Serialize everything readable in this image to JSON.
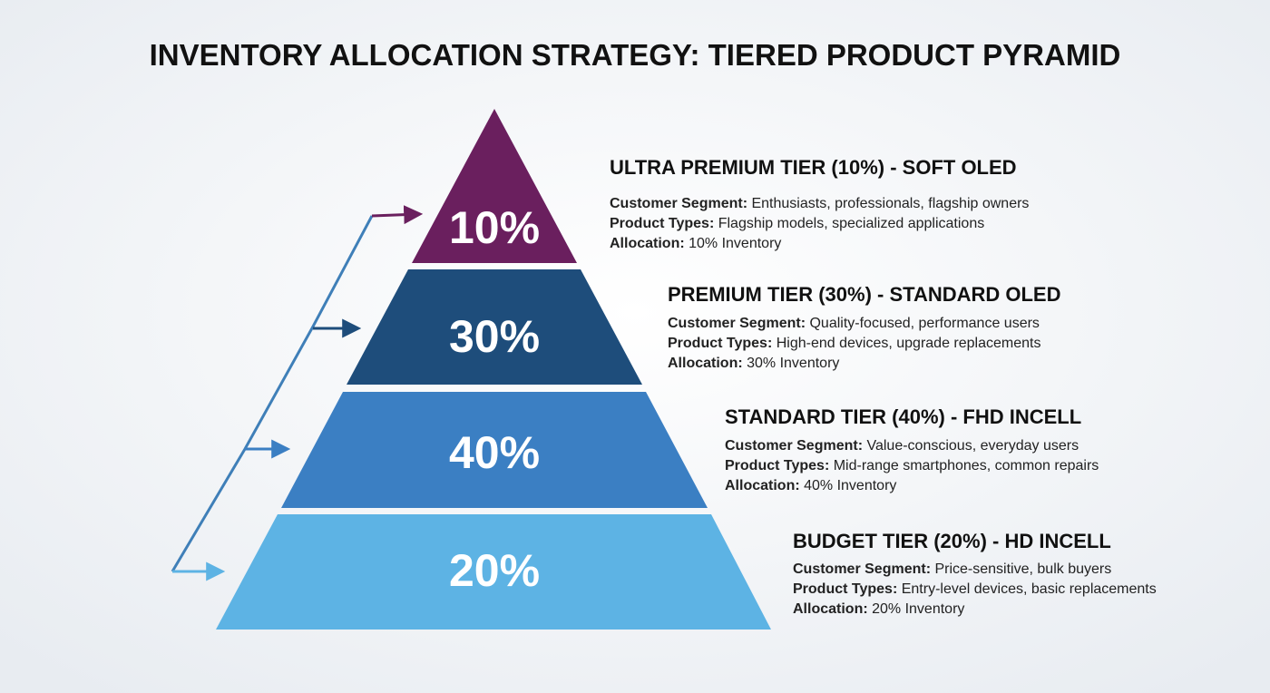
{
  "title": "INVENTORY ALLOCATION STRATEGY: TIERED PRODUCT PYRAMID",
  "tiers": [
    {
      "percent": "10%",
      "heading": "ULTRA PREMIUM TIER (10%) - SOFT OLED",
      "segment_label": "Customer Segment:",
      "segment": "Enthusiasts, professionals, flagship owners",
      "types_label": "Product Types:",
      "types": "Flagship models, specialized applications",
      "allocation_label": "Allocation:",
      "allocation": "10% Inventory"
    },
    {
      "percent": "30%",
      "heading": "PREMIUM TIER (30%) - STANDARD OLED",
      "segment_label": "Customer Segment:",
      "segment": "Quality-focused, performance users",
      "types_label": "Product Types:",
      "types": "High-end devices, upgrade replacements",
      "allocation_label": "Allocation:",
      "allocation": "30% Inventory"
    },
    {
      "percent": "40%",
      "heading": "STANDARD TIER (40%) - FHD INCELL",
      "segment_label": "Customer Segment:",
      "segment": "Value-conscious, everyday users",
      "types_label": "Product Types:",
      "types": "Mid-range smartphones, common repairs",
      "allocation_label": "Allocation:",
      "allocation": "40% Inventory"
    },
    {
      "percent": "20%",
      "heading": "BUDGET TIER (20%) - HD INCELL",
      "segment_label": "Customer Segment:",
      "segment": "Price-sensitive, bulk buyers",
      "types_label": "Product Types:",
      "types": "Entry-level devices, basic replacements",
      "allocation_label": "Allocation:",
      "allocation": "20% Inventory"
    }
  ]
}
